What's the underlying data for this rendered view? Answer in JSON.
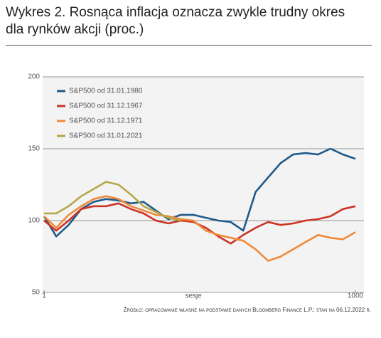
{
  "chart_data": {
    "type": "line",
    "title": "Wykres 2. Rosnąca inflacja oznacza zwykle trudny okres dla rynków akcji (proc.)",
    "x_label": "sesje",
    "source": "Źródło: opracowanie własne na podstawie danych Bloomberg Finance L.P.; stan na 06.12.2022 r.",
    "x": [
      1,
      40,
      80,
      120,
      160,
      200,
      240,
      280,
      320,
      360,
      400,
      440,
      480,
      520,
      560,
      600,
      640,
      680,
      720,
      760,
      800,
      840,
      880,
      920,
      960,
      1000
    ],
    "xlim": [
      1,
      1000
    ],
    "xticks": [
      1,
      1000
    ],
    "ylim": [
      50,
      200
    ],
    "yticks": [
      50,
      100,
      150,
      200
    ],
    "grid": true,
    "legend": "upper left",
    "series": [
      {
        "name": "S&P500 od 31.01.1980",
        "color": "#1f5a8a",
        "values": [
          103,
          89,
          97,
          108,
          113,
          115,
          114,
          112,
          113,
          107,
          101,
          104,
          104,
          102,
          100,
          99,
          93,
          120,
          130,
          140,
          146,
          147,
          146,
          150,
          146,
          143
        ]
      },
      {
        "name": "S&P500 od 31.12.1967",
        "color": "#cc3326",
        "values": [
          100,
          93,
          100,
          108,
          110,
          110,
          112,
          108,
          105,
          100,
          98,
          100,
          99,
          95,
          89,
          84,
          90,
          95,
          99,
          97,
          98,
          100,
          101,
          103,
          108,
          110
        ]
      },
      {
        "name": "S&P500 od 31.12.1971",
        "color": "#f08a3a",
        "values": [
          103,
          95,
          104,
          110,
          115,
          117,
          115,
          110,
          107,
          104,
          103,
          101,
          100,
          93,
          90,
          88,
          86,
          80,
          72,
          75,
          80,
          85,
          90,
          88,
          87,
          92
        ]
      },
      {
        "name": "S&P500 od 31.01.2021",
        "color": "#b5a84a",
        "values": [
          105,
          105,
          110,
          117,
          122,
          127,
          125,
          118,
          110,
          106,
          102,
          100,
          null,
          null,
          null,
          null,
          null,
          null,
          null,
          null,
          null,
          null,
          null,
          null,
          null,
          null
        ]
      }
    ]
  }
}
